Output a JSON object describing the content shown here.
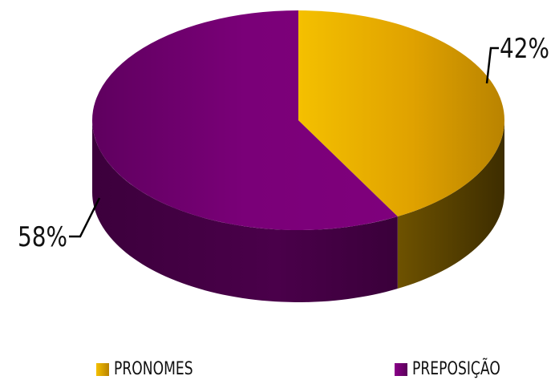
{
  "chart_data": {
    "type": "pie",
    "categories": [
      "PRONOMES",
      "PREPOSIÇÃO"
    ],
    "values": [
      42,
      58
    ],
    "data_labels": [
      "42%",
      "58%"
    ],
    "colors": [
      "#E0A800",
      "#7A0078"
    ],
    "legend_position": "bottom",
    "style": "3d"
  },
  "legend": {
    "items": [
      {
        "label": "PRONOMES",
        "color": "#E0A800"
      },
      {
        "label": "PREPOSIÇÃO",
        "color": "#7A0078"
      }
    ]
  }
}
